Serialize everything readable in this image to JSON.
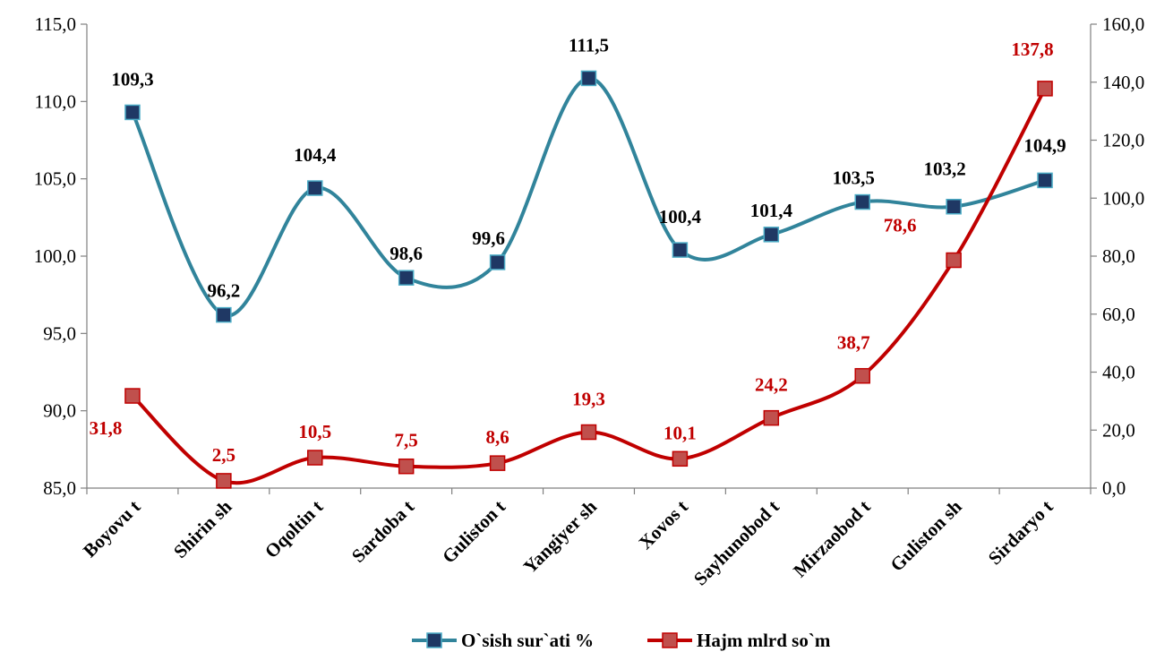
{
  "chart_data": {
    "type": "line",
    "categories": [
      "Boyovu t",
      "Shirin sh",
      "Oqoltin t",
      "Sardoba t",
      "Guliston t",
      "Yangiyer sh",
      "Xovos t",
      "Sayhunobod t",
      "Mirzaobod t",
      "Guliston sh",
      "Sirdaryo t"
    ],
    "series": [
      {
        "name": "O`sish sur`ati %",
        "axis": "left",
        "color": "#31849b",
        "marker_color": "#1f3864",
        "values": [
          109.3,
          96.2,
          104.4,
          98.6,
          99.6,
          111.5,
          100.4,
          101.4,
          103.5,
          103.2,
          104.9
        ],
        "labels": [
          "109,3",
          "96,2",
          "104,4",
          "98,6",
          "99,6",
          "111,5",
          "100,4",
          "101,4",
          "103,5",
          "103,2",
          "104,9"
        ]
      },
      {
        "name": "Hajm mlrd so`m",
        "axis": "right",
        "color": "#c00000",
        "marker_color": "#c0504d",
        "values": [
          31.8,
          2.5,
          10.5,
          7.5,
          8.6,
          19.3,
          10.1,
          24.2,
          38.7,
          78.6,
          137.8
        ],
        "labels": [
          "31,8",
          "2,5",
          "10,5",
          "7,5",
          "8,6",
          "19,3",
          "10,1",
          "24,2",
          "38,7",
          "78,6",
          "137,8"
        ]
      }
    ],
    "y_left": {
      "min": 85,
      "max": 115,
      "step": 5,
      "tick_labels": [
        "85,0",
        "90,0",
        "95,0",
        "100,0",
        "105,0",
        "110,0",
        "115,0"
      ]
    },
    "y_right": {
      "min": 0,
      "max": 160,
      "step": 20,
      "tick_labels": [
        "0,0",
        "20,0",
        "40,0",
        "60,0",
        "80,0",
        "100,0",
        "120,0",
        "140,0",
        "160,0"
      ]
    },
    "grid": false,
    "smooth": true,
    "legend_position": "bottom"
  }
}
